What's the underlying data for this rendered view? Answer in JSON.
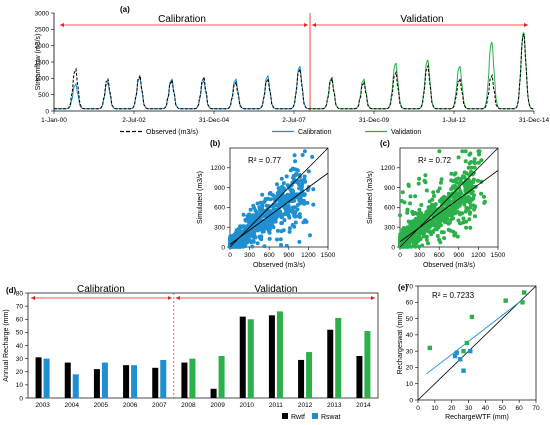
{
  "chart_data": [
    {
      "id": "a",
      "type": "line",
      "panel_label": "(a)",
      "ylabel": "Streamflow (m3/s)",
      "ylim": [
        0,
        3000
      ],
      "yticks": [
        0,
        500,
        1000,
        1500,
        2000,
        2500,
        3000
      ],
      "xlim": [
        "2000-01-01",
        "2014-12-31"
      ],
      "xtick_labels": [
        "1-Jan-00",
        "2-Jul-02",
        "31-Dec-04",
        "2-Jul-07",
        "31-Dec-09",
        "1-Jul-12",
        "31-Dec-14"
      ],
      "xtick_dates": [
        "2000-01-01",
        "2002-07-02",
        "2004-12-31",
        "2007-07-02",
        "2009-12-31",
        "2012-07-01",
        "2014-12-31"
      ],
      "split_date": "2008-01-01",
      "period_labels": [
        "Calibration",
        "Validation"
      ],
      "series": [
        {
          "name": "Observed (m3/s)",
          "color": "#000000",
          "dash": true
        },
        {
          "name": "Calibration",
          "color": "#1f8fd0"
        },
        {
          "name": "Validation",
          "color": "#2bb04a"
        }
      ],
      "annual_peaks": [
        {
          "year": 2000,
          "observed": 1200,
          "simulated": 750
        },
        {
          "year": 2001,
          "observed": 900,
          "simulated": 800
        },
        {
          "year": 2002,
          "observed": 1000,
          "simulated": 950
        },
        {
          "year": 2003,
          "observed": 850,
          "simulated": 900
        },
        {
          "year": 2004,
          "observed": 950,
          "simulated": 850
        },
        {
          "year": 2005,
          "observed": 800,
          "simulated": 900
        },
        {
          "year": 2006,
          "observed": 900,
          "simulated": 1000
        },
        {
          "year": 2007,
          "observed": 1200,
          "simulated": 1300
        },
        {
          "year": 2008,
          "observed": 900,
          "simulated": 950
        },
        {
          "year": 2009,
          "observed": 800,
          "simulated": 900
        },
        {
          "year": 2010,
          "observed": 1100,
          "simulated": 1400
        },
        {
          "year": 2011,
          "observed": 1300,
          "simulated": 1500
        },
        {
          "year": 2012,
          "observed": 900,
          "simulated": 1300
        },
        {
          "year": 2013,
          "observed": 1000,
          "simulated": 2050
        },
        {
          "year": 2014,
          "observed": 2300,
          "simulated": 2350
        }
      ]
    },
    {
      "id": "b",
      "type": "scatter",
      "panel_label": "(b)",
      "annotation": "R² = 0.77",
      "xlabel": "Observed (m3/s)",
      "ylabel": "Simulated (m3/s)",
      "xlim": [
        0,
        1500
      ],
      "ylim": [
        0,
        1500
      ],
      "xticks": [
        0,
        300,
        600,
        900,
        1200,
        1500
      ],
      "yticks": [
        0,
        300,
        600,
        900,
        1200
      ],
      "color": "#1f8fd0",
      "trend": {
        "slope": 0.72,
        "intercept": 40
      },
      "point_count": 700
    },
    {
      "id": "c",
      "type": "scatter",
      "panel_label": "(c)",
      "annotation": "R² = 0.72",
      "xlabel": "Observed (m3/s)",
      "ylabel": "Simulated (m3/s)",
      "xlim": [
        0,
        1500
      ],
      "ylim": [
        0,
        1500
      ],
      "xticks": [
        0,
        300,
        600,
        900,
        1200,
        1500
      ],
      "yticks": [
        0,
        300,
        600,
        900,
        1200
      ],
      "color": "#2bb04a",
      "trend": {
        "slope": 0.72,
        "intercept": 80
      },
      "point_count": 800
    },
    {
      "id": "d",
      "type": "bar",
      "panel_label": "(d)",
      "ylabel": "Annual Recharge (mm)",
      "ylim": [
        0,
        80
      ],
      "yticks": [
        0,
        10,
        20,
        30,
        40,
        50,
        60,
        70,
        80
      ],
      "categories": [
        "2003",
        "2004",
        "2005",
        "2006",
        "2007",
        "2008",
        "2009",
        "2010",
        "2011",
        "2012",
        "2013",
        "2014"
      ],
      "period_labels": [
        "Calibration",
        "Validation"
      ],
      "legend": [
        "Rwtf",
        "Rswat"
      ],
      "series": [
        {
          "name": "Rwtf",
          "color": "#000000",
          "values": [
            31,
            27,
            22,
            25,
            23,
            27,
            7,
            62,
            63,
            29,
            52,
            32
          ]
        },
        {
          "name": "Rswat",
          "color": "#1f8fd0",
          "values": [
            30,
            18,
            27,
            25,
            29,
            30,
            32,
            60,
            66,
            35,
            61,
            51
          ]
        }
      ],
      "validation_color": "#2bb04a",
      "split_index": 5
    },
    {
      "id": "e",
      "type": "scatter",
      "panel_label": "(e)",
      "annotation": "R² = 0.7233",
      "xlabel": "RechargeWTF (mm)",
      "ylabel": "Rechargeswat (mm)",
      "xlim": [
        0,
        70
      ],
      "ylim": [
        0,
        70
      ],
      "xticks": [
        0,
        10,
        20,
        30,
        40,
        50,
        60,
        70
      ],
      "yticks": [
        0,
        10,
        20,
        30,
        40,
        50,
        60,
        70
      ],
      "points_calibration": [
        [
          31,
          30
        ],
        [
          27,
          18
        ],
        [
          22,
          27
        ],
        [
          25,
          25
        ],
        [
          23,
          29
        ]
      ],
      "points_validation": [
        [
          27,
          30
        ],
        [
          7,
          32
        ],
        [
          62,
          60
        ],
        [
          63,
          66
        ],
        [
          29,
          35
        ],
        [
          52,
          61
        ],
        [
          32,
          51
        ]
      ],
      "calibration_color": "#1f8fd0",
      "validation_color": "#2bb04a",
      "trend": {
        "slope": 0.8,
        "intercept": 12
      }
    }
  ]
}
